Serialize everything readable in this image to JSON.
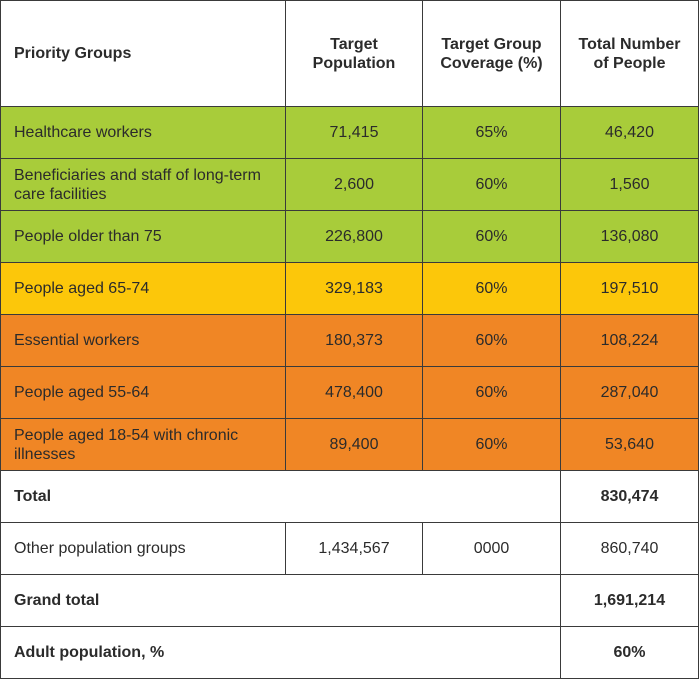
{
  "header": {
    "priority_groups": "Priority Groups",
    "target_population": "Target Population",
    "coverage": "Target Group Coverage (%)",
    "total_people": "Total Number of People"
  },
  "rows": [
    {
      "group": "Healthcare workers",
      "target": "71,415",
      "coverage": "65%",
      "total": "46,420"
    },
    {
      "group": "Beneficiaries and staff of long-term care facilities",
      "target": "2,600",
      "coverage": "60%",
      "total": "1,560"
    },
    {
      "group": "People older than 75",
      "target": "226,800",
      "coverage": "60%",
      "total": "136,080"
    },
    {
      "group": "People aged 65-74",
      "target": "329,183",
      "coverage": "60%",
      "total": "197,510"
    },
    {
      "group": "Essential workers",
      "target": "180,373",
      "coverage": "60%",
      "total": "108,224"
    },
    {
      "group": "People aged 55-64",
      "target": "478,400",
      "coverage": "60%",
      "total": "287,040"
    },
    {
      "group": "People aged 18-54 with chronic illnesses",
      "target": "89,400",
      "coverage": "60%",
      "total": "53,640"
    }
  ],
  "total": {
    "label": "Total",
    "value": "830,474"
  },
  "other": {
    "group": "Other population groups",
    "target": "1,434,567",
    "coverage": "0000",
    "total": "860,740"
  },
  "grand_total": {
    "label": "Grand total",
    "value": "1,691,214"
  },
  "adult": {
    "label": "Adult population, %",
    "value": "60%"
  },
  "colors": {
    "green": "#a8cc3a",
    "yellow": "#fcc70a",
    "orange": "#f08625",
    "border": "#3a3a3a",
    "text": "#2b2b2b"
  }
}
